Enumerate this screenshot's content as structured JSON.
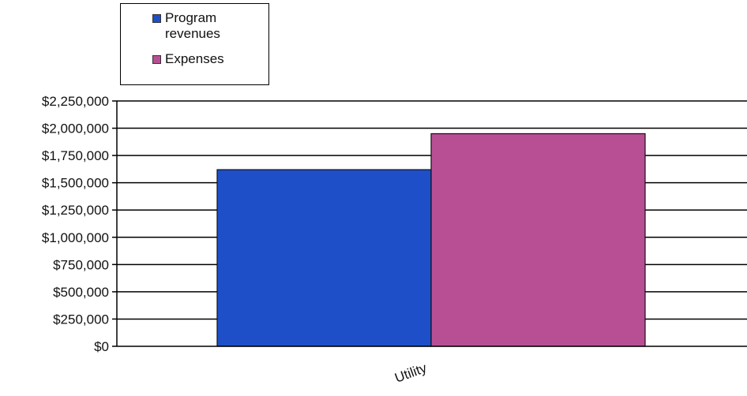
{
  "chart_data": {
    "type": "bar",
    "categories": [
      "Utility"
    ],
    "series": [
      {
        "name": "Program revenues",
        "values": [
          1620000
        ],
        "color": "#1e4fc8"
      },
      {
        "name": "Expenses",
        "values": [
          1950000
        ],
        "color": "#b84f94"
      }
    ],
    "ylim": [
      0,
      2250000
    ],
    "yticks": [
      0,
      250000,
      500000,
      750000,
      1000000,
      1250000,
      1500000,
      1750000,
      2000000,
      2250000
    ],
    "ytick_labels": [
      "$0",
      "$250,000",
      "$500,000",
      "$750,000",
      "$1,000,000",
      "$1,250,000",
      "$1,500,000",
      "$1,750,000",
      "$2,000,000",
      "$2,250,000"
    ],
    "grid": true,
    "legend_position": "top-left"
  },
  "legend": {
    "items": [
      {
        "label_line1": "Program",
        "label_line2": "revenues",
        "color": "#1e4fc8"
      },
      {
        "label_line1": "Expenses",
        "label_line2": "",
        "color": "#b84f94"
      }
    ]
  }
}
